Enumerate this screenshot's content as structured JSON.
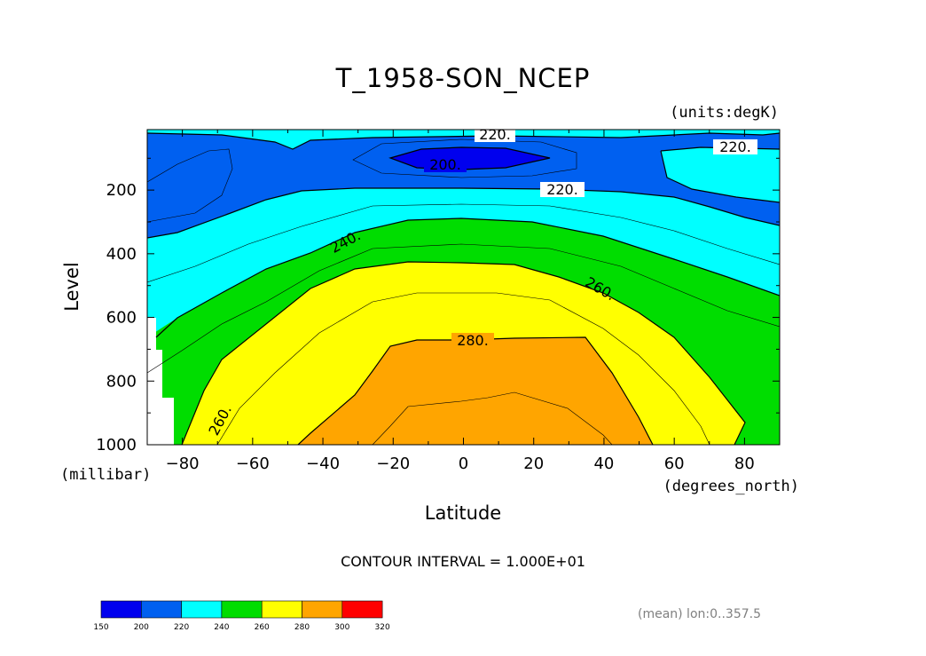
{
  "chart_data": {
    "type": "contour",
    "title": "T_1958-SON_NCEP",
    "units_label": "(units:degK)",
    "xlabel": "Latitude",
    "xunits": "(degrees_north)",
    "ylabel": "Level",
    "yunits": "(millibar)",
    "xlim": [
      -90,
      90
    ],
    "ylim": [
      1000,
      10
    ],
    "x_ticks": [
      "−80",
      "−60",
      "−40",
      "−20",
      "0",
      "20",
      "40",
      "60",
      "80"
    ],
    "x_tick_values": [
      -80,
      -60,
      -40,
      -20,
      0,
      20,
      40,
      60,
      80
    ],
    "y_ticks": [
      "200",
      "400",
      "600",
      "800",
      "1000"
    ],
    "y_tick_values": [
      200,
      400,
      600,
      800,
      1000
    ],
    "contour_interval_text": "CONTOUR INTERVAL = 1.000E+01",
    "contour_labels": [
      "220.",
      "220.",
      "200.",
      "220.",
      "240.",
      "260.",
      "280.",
      "260."
    ],
    "colorbar": {
      "bounds": [
        150,
        200,
        220,
        240,
        260,
        280,
        300,
        320
      ],
      "bound_labels": [
        "150",
        "200",
        "220",
        "240",
        "260",
        "280",
        "300",
        "320"
      ],
      "colors": [
        "#0000ee",
        "#0060f0",
        "#00ffff",
        "#00dd00",
        "#ffff00",
        "#ffa500",
        "#ff0000"
      ]
    },
    "grid": false,
    "legend_position": "bottom-left"
  },
  "footnote": "(mean) lon:0..357.5"
}
